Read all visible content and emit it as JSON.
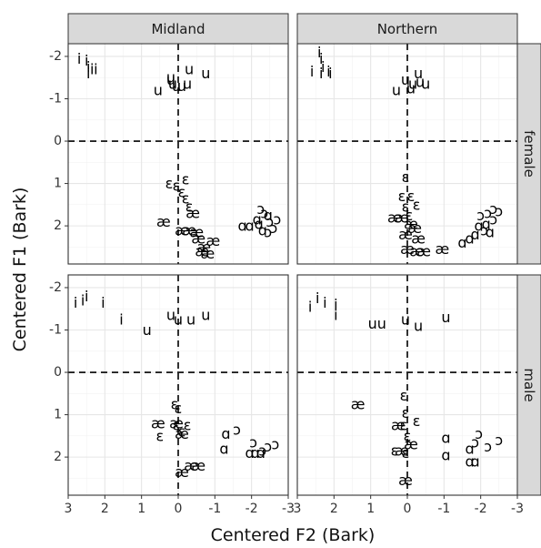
{
  "chart_data": {
    "type": "scatter",
    "xlabel": "Centered F2 (Bark)",
    "ylabel": "Centered F1 (Bark)",
    "xlim": [
      3,
      -3
    ],
    "ylim": [
      -2.3,
      2.9
    ],
    "x_reversed": true,
    "y_reversed": true,
    "x_ticks": [
      3,
      2,
      1,
      0,
      -1,
      -2,
      -3
    ],
    "x_tick_labels": [
      "3",
      "2",
      "1",
      "0",
      "-1",
      "-2",
      "-3"
    ],
    "y_ticks": [
      -2,
      -1,
      0,
      1,
      2
    ],
    "y_tick_labels": [
      "-2",
      "-1",
      "0",
      "1",
      "2"
    ],
    "reference_lines": {
      "x": 0,
      "y": 0,
      "style": "dashed"
    },
    "grid": true,
    "column_facets": [
      "Midland",
      "Northern"
    ],
    "row_facets": [
      "female",
      "male"
    ],
    "panels": [
      {
        "column": "Midland",
        "row": "female",
        "points": [
          {
            "label": "i",
            "x": 2.7,
            "y": -1.95
          },
          {
            "label": "i",
            "x": 2.5,
            "y": -1.9
          },
          {
            "label": "i",
            "x": 2.45,
            "y": -1.75
          },
          {
            "label": "i",
            "x": 2.35,
            "y": -1.7
          },
          {
            "label": "i",
            "x": 2.45,
            "y": -1.6
          },
          {
            "label": "i",
            "x": 2.25,
            "y": -1.7
          },
          {
            "label": "u",
            "x": 0.2,
            "y": -1.45
          },
          {
            "label": "u",
            "x": 0.15,
            "y": -1.35
          },
          {
            "label": "u",
            "x": 0.05,
            "y": -1.3
          },
          {
            "label": "u",
            "x": -0.3,
            "y": -1.7
          },
          {
            "label": "u",
            "x": -0.75,
            "y": -1.6
          },
          {
            "label": "u",
            "x": -0.1,
            "y": -1.3
          },
          {
            "label": "u",
            "x": -0.25,
            "y": -1.35
          },
          {
            "label": "u",
            "x": 0.55,
            "y": -1.2
          },
          {
            "label": "u",
            "x": 0.2,
            "y": -1.5
          },
          {
            "label": "ɛ",
            "x": 0.25,
            "y": 1.0
          },
          {
            "label": "ɛ",
            "x": 0.05,
            "y": 1.05
          },
          {
            "label": "ɛ",
            "x": -0.2,
            "y": 0.9
          },
          {
            "label": "ɛ",
            "x": -0.1,
            "y": 1.2
          },
          {
            "label": "ɛ",
            "x": -0.2,
            "y": 1.35
          },
          {
            "label": "ɛ",
            "x": -0.3,
            "y": 1.55
          },
          {
            "label": "æ",
            "x": 0.4,
            "y": 1.9
          },
          {
            "label": "æ",
            "x": -0.4,
            "y": 1.7
          },
          {
            "label": "æ",
            "x": -0.3,
            "y": 2.1
          },
          {
            "label": "æ",
            "x": -0.5,
            "y": 2.15
          },
          {
            "label": "æ",
            "x": -0.1,
            "y": 2.1
          },
          {
            "label": "æ",
            "x": -0.55,
            "y": 2.3
          },
          {
            "label": "æ",
            "x": -0.7,
            "y": 2.5
          },
          {
            "label": "æ",
            "x": -0.95,
            "y": 2.35
          },
          {
            "label": "æ",
            "x": -0.65,
            "y": 2.6
          },
          {
            "label": "æ",
            "x": -0.8,
            "y": 2.65
          },
          {
            "label": "ɑ",
            "x": -1.75,
            "y": 2.0
          },
          {
            "label": "ɑ",
            "x": -1.95,
            "y": 2.0
          },
          {
            "label": "ɑ",
            "x": -2.15,
            "y": 1.85
          },
          {
            "label": "ɑ",
            "x": -2.3,
            "y": 2.1
          },
          {
            "label": "ɑ",
            "x": -2.2,
            "y": 1.95
          },
          {
            "label": "ɑ",
            "x": -2.45,
            "y": 1.75
          },
          {
            "label": "ɔ",
            "x": -2.35,
            "y": 1.7
          },
          {
            "label": "ɔ",
            "x": -2.5,
            "y": 1.9
          },
          {
            "label": "ɔ",
            "x": -2.6,
            "y": 2.05
          },
          {
            "label": "ɔ",
            "x": -2.45,
            "y": 2.15
          },
          {
            "label": "ɔ",
            "x": -2.7,
            "y": 1.85
          },
          {
            "label": "ɔ",
            "x": -2.25,
            "y": 1.6
          }
        ]
      },
      {
        "column": "Northern",
        "row": "female",
        "points": [
          {
            "label": "i",
            "x": 2.4,
            "y": -2.1
          },
          {
            "label": "i",
            "x": 2.35,
            "y": -1.95
          },
          {
            "label": "i",
            "x": 2.3,
            "y": -1.75
          },
          {
            "label": "i",
            "x": 2.35,
            "y": -1.6
          },
          {
            "label": "i",
            "x": 2.6,
            "y": -1.65
          },
          {
            "label": "i",
            "x": 2.15,
            "y": -1.65
          },
          {
            "label": "i",
            "x": 2.1,
            "y": -1.6
          },
          {
            "label": "u",
            "x": 0.05,
            "y": -1.45
          },
          {
            "label": "u",
            "x": -0.15,
            "y": -1.35
          },
          {
            "label": "u",
            "x": -0.3,
            "y": -1.6
          },
          {
            "label": "u",
            "x": -0.35,
            "y": -1.4
          },
          {
            "label": "u",
            "x": -0.5,
            "y": -1.35
          },
          {
            "label": "u",
            "x": 0.3,
            "y": -1.2
          },
          {
            "label": "u",
            "x": -0.1,
            "y": -1.25
          },
          {
            "label": "ɛ",
            "x": 0.05,
            "y": 0.85
          },
          {
            "label": "ɛ",
            "x": 0.15,
            "y": 1.3
          },
          {
            "label": "ɛ",
            "x": -0.1,
            "y": 1.3
          },
          {
            "label": "ɛ",
            "x": -0.25,
            "y": 1.5
          },
          {
            "label": "ɛ",
            "x": -0.05,
            "y": 1.75
          },
          {
            "label": "ɛ",
            "x": 0.05,
            "y": 1.55
          },
          {
            "label": "æ",
            "x": 0.35,
            "y": 1.8
          },
          {
            "label": "æ",
            "x": 0.15,
            "y": 1.8
          },
          {
            "label": "æ",
            "x": -0.1,
            "y": 1.95
          },
          {
            "label": "æ",
            "x": 0.05,
            "y": 2.2
          },
          {
            "label": "æ",
            "x": -0.2,
            "y": 2.05
          },
          {
            "label": "æ",
            "x": -0.3,
            "y": 2.3
          },
          {
            "label": "æ",
            "x": 0.0,
            "y": 2.55
          },
          {
            "label": "æ",
            "x": -0.25,
            "y": 2.6
          },
          {
            "label": "æ",
            "x": -0.45,
            "y": 2.6
          },
          {
            "label": "æ",
            "x": -0.95,
            "y": 2.55
          },
          {
            "label": "ɑ",
            "x": -1.5,
            "y": 2.4
          },
          {
            "label": "ɑ",
            "x": -1.7,
            "y": 2.3
          },
          {
            "label": "ɑ",
            "x": -1.95,
            "y": 2.0
          },
          {
            "label": "ɑ",
            "x": -2.15,
            "y": 1.95
          },
          {
            "label": "ɑ",
            "x": -2.25,
            "y": 2.15
          },
          {
            "label": "ɑ",
            "x": -1.85,
            "y": 2.2
          },
          {
            "label": "ɔ",
            "x": -2.0,
            "y": 1.75
          },
          {
            "label": "ɔ",
            "x": -2.2,
            "y": 1.7
          },
          {
            "label": "ɔ",
            "x": -2.35,
            "y": 1.6
          },
          {
            "label": "ɔ",
            "x": -2.5,
            "y": 1.65
          },
          {
            "label": "ɔ",
            "x": -2.35,
            "y": 1.85
          },
          {
            "label": "ɔ",
            "x": -2.1,
            "y": 2.1
          }
        ]
      },
      {
        "column": "Midland",
        "row": "male",
        "points": [
          {
            "label": "i",
            "x": 2.8,
            "y": -1.65
          },
          {
            "label": "i",
            "x": 2.6,
            "y": -1.7
          },
          {
            "label": "i",
            "x": 2.5,
            "y": -1.8
          },
          {
            "label": "i",
            "x": 2.05,
            "y": -1.65
          },
          {
            "label": "i",
            "x": 1.55,
            "y": -1.25
          },
          {
            "label": "u",
            "x": 0.85,
            "y": -1.0
          },
          {
            "label": "u",
            "x": 0.2,
            "y": -1.35
          },
          {
            "label": "u",
            "x": 0.0,
            "y": -1.25
          },
          {
            "label": "u",
            "x": -0.35,
            "y": -1.25
          },
          {
            "label": "u",
            "x": -0.75,
            "y": -1.35
          },
          {
            "label": "ɛ",
            "x": 0.1,
            "y": 0.75
          },
          {
            "label": "ɛ",
            "x": 0.0,
            "y": 0.85
          },
          {
            "label": "ɛ",
            "x": 0.05,
            "y": 1.25
          },
          {
            "label": "ɛ",
            "x": -0.25,
            "y": 1.25
          },
          {
            "label": "ɛ",
            "x": -0.1,
            "y": 1.4
          },
          {
            "label": "ɛ",
            "x": 0.5,
            "y": 1.5
          },
          {
            "label": "æ",
            "x": 0.55,
            "y": 1.2
          },
          {
            "label": "æ",
            "x": 0.05,
            "y": 1.2
          },
          {
            "label": "æ",
            "x": -0.1,
            "y": 1.45
          },
          {
            "label": "æ",
            "x": -0.1,
            "y": 2.35
          },
          {
            "label": "æ",
            "x": -0.35,
            "y": 2.2
          },
          {
            "label": "æ",
            "x": -0.55,
            "y": 2.2
          },
          {
            "label": "ɑ",
            "x": -1.3,
            "y": 1.45
          },
          {
            "label": "ɑ",
            "x": -1.25,
            "y": 1.8
          },
          {
            "label": "ɑ",
            "x": -1.95,
            "y": 1.9
          },
          {
            "label": "ɑ",
            "x": -2.1,
            "y": 1.9
          },
          {
            "label": "ɑ",
            "x": -2.25,
            "y": 1.9
          },
          {
            "label": "ɔ",
            "x": -1.6,
            "y": 1.35
          },
          {
            "label": "ɔ",
            "x": -2.05,
            "y": 1.65
          },
          {
            "label": "ɔ",
            "x": -2.3,
            "y": 1.85
          },
          {
            "label": "ɔ",
            "x": -2.45,
            "y": 1.75
          },
          {
            "label": "ɔ",
            "x": -2.65,
            "y": 1.7
          }
        ]
      },
      {
        "column": "Northern",
        "row": "male",
        "points": [
          {
            "label": "i",
            "x": 2.65,
            "y": -1.55
          },
          {
            "label": "i",
            "x": 2.45,
            "y": -1.75
          },
          {
            "label": "i",
            "x": 2.25,
            "y": -1.65
          },
          {
            "label": "i",
            "x": 1.95,
            "y": -1.6
          },
          {
            "label": "i",
            "x": 1.95,
            "y": -1.35
          },
          {
            "label": "u",
            "x": 0.95,
            "y": -1.15
          },
          {
            "label": "u",
            "x": 0.7,
            "y": -1.15
          },
          {
            "label": "u",
            "x": 0.05,
            "y": -1.25
          },
          {
            "label": "u",
            "x": -0.3,
            "y": -1.1
          },
          {
            "label": "u",
            "x": -1.05,
            "y": -1.3
          },
          {
            "label": "ɛ",
            "x": 0.1,
            "y": 0.55
          },
          {
            "label": "ɛ",
            "x": 0.05,
            "y": 0.95
          },
          {
            "label": "ɛ",
            "x": 0.1,
            "y": 1.25
          },
          {
            "label": "ɛ",
            "x": -0.25,
            "y": 1.15
          },
          {
            "label": "ɛ",
            "x": 0.0,
            "y": 1.5
          },
          {
            "label": "ɛ",
            "x": 0.35,
            "y": 1.85
          },
          {
            "label": "ɛ",
            "x": 0.05,
            "y": 1.9
          },
          {
            "label": "æ",
            "x": 1.35,
            "y": 0.75
          },
          {
            "label": "æ",
            "x": 0.25,
            "y": 1.25
          },
          {
            "label": "æ",
            "x": 0.15,
            "y": 1.85
          },
          {
            "label": "æ",
            "x": -0.1,
            "y": 1.7
          },
          {
            "label": "æ",
            "x": 0.05,
            "y": 2.55
          },
          {
            "label": "ɑ",
            "x": -1.05,
            "y": 1.55
          },
          {
            "label": "ɑ",
            "x": -1.05,
            "y": 1.95
          },
          {
            "label": "ɑ",
            "x": -1.7,
            "y": 1.8
          },
          {
            "label": "ɑ",
            "x": -1.7,
            "y": 2.1
          },
          {
            "label": "ɑ",
            "x": -1.85,
            "y": 2.1
          },
          {
            "label": "ɔ",
            "x": -1.95,
            "y": 1.45
          },
          {
            "label": "ɔ",
            "x": -1.85,
            "y": 1.65
          },
          {
            "label": "ɔ",
            "x": -2.2,
            "y": 1.75
          },
          {
            "label": "ɔ",
            "x": -2.5,
            "y": 1.6
          }
        ]
      }
    ]
  }
}
